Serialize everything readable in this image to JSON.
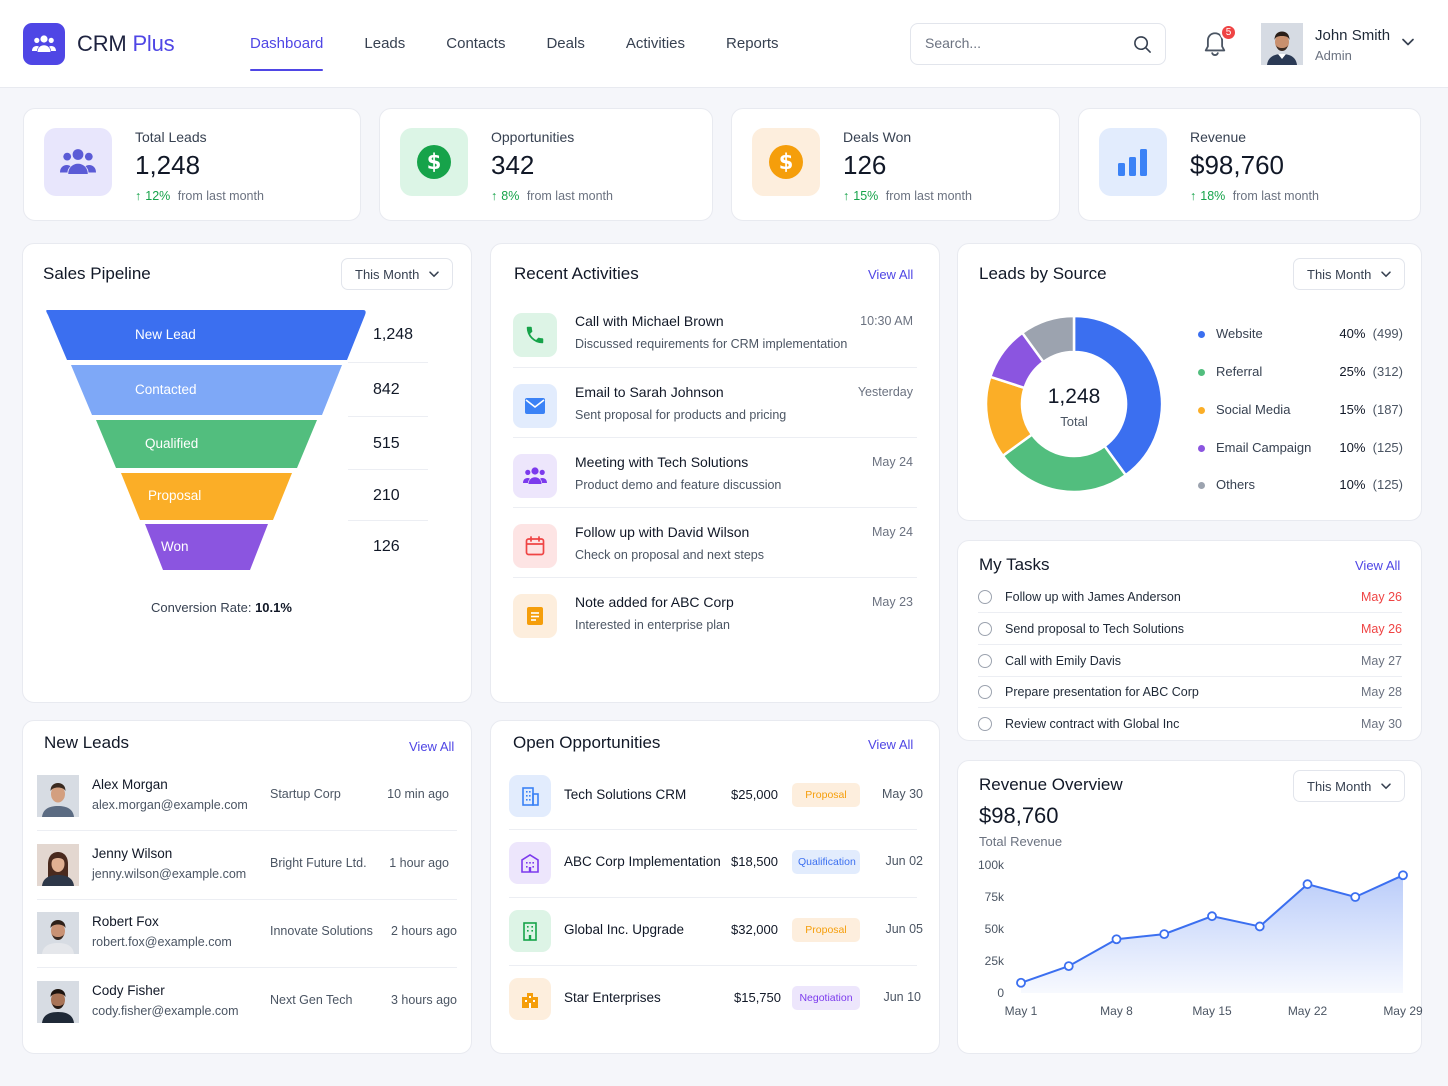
{
  "brand": {
    "name": "CRM",
    "suffix": "Plus"
  },
  "nav": [
    {
      "label": "Dashboard",
      "active": true
    },
    {
      "label": "Leads"
    },
    {
      "label": "Contacts"
    },
    {
      "label": "Deals"
    },
    {
      "label": "Activities"
    },
    {
      "label": "Reports"
    }
  ],
  "search": {
    "placeholder": "Search..."
  },
  "notifications": {
    "count": "5"
  },
  "user": {
    "name": "John Smith",
    "role": "Admin"
  },
  "stats": [
    {
      "label": "Total Leads",
      "value": "1,248",
      "delta_pct": "12%",
      "delta_text": "from last month",
      "icon": "users-icon",
      "icon_bg": "#e8e6fc",
      "icon_color": "#5b5bd6"
    },
    {
      "label": "Opportunities",
      "value": "342",
      "delta_pct": "8%",
      "delta_text": "from last month",
      "icon": "dollar-icon",
      "icon_bg": "#dcf5e6",
      "icon_color": "#16a34a"
    },
    {
      "label": "Deals Won",
      "value": "126",
      "delta_pct": "15%",
      "delta_text": "from last month",
      "icon": "dollar-icon",
      "icon_bg": "#fdeedd",
      "icon_color": "#f59e0b"
    },
    {
      "label": "Revenue",
      "value": "$98,760",
      "delta_pct": "18%",
      "delta_text": "from last month",
      "icon": "bar-chart-icon",
      "icon_bg": "#e2ecfd",
      "icon_color": "#3b82f6"
    }
  ],
  "pipeline": {
    "title": "Sales Pipeline",
    "period": "This Month",
    "stages": [
      {
        "label": "New Lead",
        "value": "1,248",
        "color": "#3b6ff0"
      },
      {
        "label": "Contacted",
        "value": "842",
        "color": "#7ea8f7"
      },
      {
        "label": "Qualified",
        "value": "515",
        "color": "#52be7e"
      },
      {
        "label": "Proposal",
        "value": "210",
        "color": "#fbae27"
      },
      {
        "label": "Won",
        "value": "126",
        "color": "#8b55e0"
      }
    ],
    "conversion_label": "Conversion Rate:",
    "conversion_value": "10.1%"
  },
  "activities": {
    "title": "Recent Activities",
    "view_all": "View All",
    "items": [
      {
        "title": "Call with Michael Brown",
        "sub": "Discussed requirements for CRM implementation",
        "time": "10:30 AM",
        "icon": "phone-icon",
        "bg": "#ddf4e6",
        "color": "#16a34a"
      },
      {
        "title": "Email to Sarah Johnson",
        "sub": "Sent proposal for products and pricing",
        "time": "Yesterday",
        "icon": "mail-icon",
        "bg": "#e2ecfd",
        "color": "#3b82f6"
      },
      {
        "title": "Meeting with Tech Solutions",
        "sub": "Product demo and feature discussion",
        "time": "May 24",
        "icon": "users-icon",
        "bg": "#ede6fc",
        "color": "#7c3aed"
      },
      {
        "title": "Follow up with David Wilson",
        "sub": "Check on proposal and next steps",
        "time": "May 24",
        "icon": "calendar-icon",
        "bg": "#fde4e4",
        "color": "#ef4444"
      },
      {
        "title": "Note added for ABC Corp",
        "sub": "Interested in enterprise plan",
        "time": "May 23",
        "icon": "note-icon",
        "bg": "#fdeedd",
        "color": "#f59e0b"
      }
    ]
  },
  "sources": {
    "title": "Leads by Source",
    "period": "This Month",
    "total": "1,248",
    "total_label": "Total",
    "items": [
      {
        "name": "Website",
        "pct": 40,
        "display": "40%",
        "count": "(499)",
        "color": "#3b6ff0"
      },
      {
        "name": "Referral",
        "pct": 25,
        "display": "25%",
        "count": "(312)",
        "color": "#52be7e"
      },
      {
        "name": "Social Media",
        "pct": 15,
        "display": "15%",
        "count": "(187)",
        "color": "#fbae27"
      },
      {
        "name": "Email Campaign",
        "pct": 10,
        "display": "10%",
        "count": "(125)",
        "color": "#8b55e0"
      },
      {
        "name": "Others",
        "pct": 10,
        "display": "10%",
        "count": "(125)",
        "color": "#9ca3af"
      }
    ]
  },
  "tasks": {
    "title": "My Tasks",
    "view_all": "View All",
    "items": [
      {
        "name": "Follow up with James Anderson",
        "date": "May 26",
        "due": true
      },
      {
        "name": "Send proposal to Tech Solutions",
        "date": "May 26",
        "due": true
      },
      {
        "name": "Call with Emily Davis",
        "date": "May 27",
        "due": false
      },
      {
        "name": "Prepare presentation for ABC Corp",
        "date": "May 28",
        "due": false
      },
      {
        "name": "Review contract with Global Inc",
        "date": "May 30",
        "due": false
      }
    ]
  },
  "leads": {
    "title": "New Leads",
    "view_all": "View All",
    "items": [
      {
        "name": "Alex Morgan",
        "email": "alex.morgan@example.com",
        "company": "Startup Corp",
        "time": "10 min ago"
      },
      {
        "name": "Jenny Wilson",
        "email": "jenny.wilson@example.com",
        "company": "Bright Future Ltd.",
        "time": "1 hour ago"
      },
      {
        "name": "Robert Fox",
        "email": "robert.fox@example.com",
        "company": "Innovate Solutions",
        "time": "2 hours ago"
      },
      {
        "name": "Cody Fisher",
        "email": "cody.fisher@example.com",
        "company": "Next Gen Tech",
        "time": "3 hours ago"
      }
    ]
  },
  "opportunities": {
    "title": "Open Opportunities",
    "view_all": "View All",
    "items": [
      {
        "name": "Tech Solutions CRM",
        "amount": "$25,000",
        "stage": "Proposal",
        "date": "May 30",
        "icon_bg": "#e2ecfd",
        "icon_color": "#3b82f6",
        "stage_bg": "#fdeedd",
        "stage_color": "#f59e0b"
      },
      {
        "name": "ABC Corp Implementation",
        "amount": "$18,500",
        "stage": "Qualification",
        "date": "Jun 02",
        "icon_bg": "#ede6fc",
        "icon_color": "#7c3aed",
        "stage_bg": "#e2ecfd",
        "stage_color": "#3b6ff0"
      },
      {
        "name": "Global Inc. Upgrade",
        "amount": "$32,000",
        "stage": "Proposal",
        "date": "Jun 05",
        "icon_bg": "#ddf4e6",
        "icon_color": "#16a34a",
        "stage_bg": "#fdeedd",
        "stage_color": "#f59e0b"
      },
      {
        "name": "Star Enterprises",
        "amount": "$15,750",
        "stage": "Negotiation",
        "date": "Jun 10",
        "icon_bg": "#fdeedd",
        "icon_color": "#f59e0b",
        "stage_bg": "#ede6fc",
        "stage_color": "#7c3aed"
      }
    ]
  },
  "revenue": {
    "title": "Revenue Overview",
    "period": "This Month",
    "value": "$98,760",
    "label": "Total Revenue"
  },
  "chart_data": {
    "type": "area",
    "x": [
      "May 1",
      "May 4",
      "May 8",
      "May 12",
      "May 15",
      "May 19",
      "May 22",
      "May 26",
      "May 29"
    ],
    "values": [
      8000,
      21000,
      42000,
      46000,
      60000,
      52000,
      85000,
      75000,
      92000
    ],
    "xticks": [
      "May 1",
      "May 8",
      "May 15",
      "May 22",
      "May 29"
    ],
    "yticks": [
      "0",
      "25k",
      "50k",
      "75k",
      "100k"
    ],
    "ylim": [
      0,
      100000
    ],
    "color": "#3b6ff0"
  }
}
